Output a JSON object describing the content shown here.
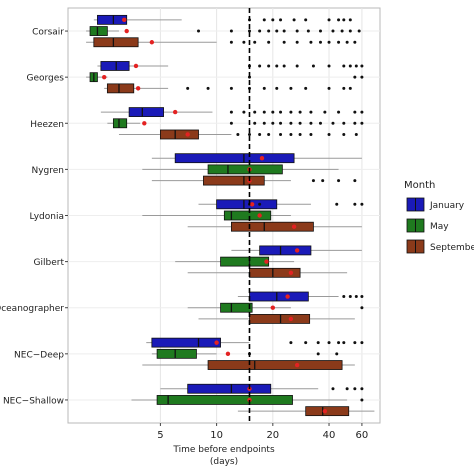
{
  "chart_data": {
    "type": "boxplot",
    "orientation": "horizontal",
    "xlabel": "Time before endpoints",
    "xlabel_unit": "(days)",
    "x_scale": "log",
    "xlim": [
      1.6,
      75
    ],
    "x_ticks": [
      5,
      10,
      20,
      40,
      60
    ],
    "x_tick_labels": [
      "5",
      "10",
      "20",
      "40",
      "60"
    ],
    "grid": true,
    "reference_line": {
      "x": 15,
      "style": "dashed"
    },
    "categories": [
      "Corsair",
      "Georges",
      "Heezen",
      "Nygren",
      "Lydonia",
      "Gilbert",
      "Oceanographer",
      "NEC-Deep",
      "NEC-Shallow"
    ],
    "category_labels": [
      "Corsair",
      "Georges",
      "Heezen",
      "Nygren",
      "Lydonia",
      "Gilbert",
      "Oceanographer",
      "NEC−Deep",
      "NEC−Shallow"
    ],
    "legend": {
      "title": "Month",
      "position": "right",
      "entries": [
        {
          "label": "January",
          "color": "#1a1ab8"
        },
        {
          "label": "May",
          "color": "#1f7a1f"
        },
        {
          "label": "September",
          "color": "#8b3a1a"
        }
      ]
    },
    "series": [
      {
        "name": "January",
        "color": "#1a1ab8",
        "boxes": [
          {
            "category": "Corsair",
            "whisker_low": 2.2,
            "q1": 2.3,
            "median": 2.8,
            "q3": 3.3,
            "whisker_high": 6.5,
            "mean": 3.2,
            "outliers": [
              15,
              18,
              20,
              22,
              26,
              30,
              40,
              45,
              48,
              52
            ]
          },
          {
            "category": "Georges",
            "whisker_low": 2.3,
            "q1": 2.4,
            "median": 2.9,
            "q3": 3.4,
            "whisker_high": 5.5,
            "mean": 3.7,
            "outliers": [
              15,
              17,
              19,
              21,
              23,
              27,
              33,
              40,
              48,
              52,
              56,
              60
            ]
          },
          {
            "category": "Heezen",
            "whisker_low": 2.4,
            "q1": 3.4,
            "median": 4.0,
            "q3": 5.2,
            "whisker_high": 9.5,
            "mean": 6.0,
            "outliers": [
              12,
              14,
              16,
              18,
              20,
              22,
              25,
              28,
              32,
              38,
              45,
              55,
              60
            ]
          },
          {
            "category": "Nygren",
            "whisker_low": 4.5,
            "q1": 6.0,
            "median": 14.0,
            "q3": 26.0,
            "whisker_high": 60.0,
            "mean": 17.5,
            "outliers": []
          },
          {
            "category": "Lydonia",
            "whisker_low": 8.0,
            "q1": 10.0,
            "median": 14.0,
            "q3": 21.0,
            "whisker_high": 32.0,
            "mean": 15.5,
            "outliers": [
              15,
              17,
              44,
              55,
              60
            ]
          },
          {
            "category": "Gilbert",
            "whisker_low": 12.0,
            "q1": 17.0,
            "median": 22.0,
            "q3": 32.0,
            "whisker_high": 60.0,
            "mean": 27.0,
            "outliers": []
          },
          {
            "category": "Oceanographer",
            "whisker_low": 13.0,
            "q1": 15.0,
            "median": 21.0,
            "q3": 31.0,
            "whisker_high": 45.0,
            "mean": 24.0,
            "outliers": [
              48,
              52,
              56,
              60
            ]
          },
          {
            "category": "NEC-Deep",
            "whisker_low": 4.2,
            "q1": 4.5,
            "median": 8.0,
            "q3": 10.5,
            "whisker_high": 15.0,
            "mean": 10.0,
            "outliers": [
              25,
              30,
              35,
              40,
              45,
              48,
              55,
              60
            ]
          },
          {
            "category": "NEC-Shallow",
            "whisker_low": 5.0,
            "q1": 7.0,
            "median": 12.0,
            "q3": 19.5,
            "whisker_high": 35.0,
            "mean": 15.0,
            "outliers": [
              42,
              50,
              55,
              60
            ]
          }
        ]
      },
      {
        "name": "May",
        "color": "#1f7a1f",
        "boxes": [
          {
            "category": "Corsair",
            "whisker_low": 2.0,
            "q1": 2.1,
            "median": 2.3,
            "q3": 2.6,
            "whisker_high": 3.0,
            "mean": 3.3,
            "outliers": [
              8,
              12,
              15,
              17,
              19,
              21,
              23,
              27,
              31,
              36,
              42,
              47,
              52,
              58
            ]
          },
          {
            "category": "Georges",
            "whisker_low": 2.0,
            "q1": 2.1,
            "median": 2.2,
            "q3": 2.3,
            "whisker_high": 2.6,
            "mean": 2.5,
            "outliers": [
              15,
              55,
              60
            ]
          },
          {
            "category": "Heezen",
            "whisker_low": 2.6,
            "q1": 2.8,
            "median": 3.0,
            "q3": 3.3,
            "whisker_high": 3.9,
            "mean": 4.1,
            "outliers": [
              12,
              16,
              18,
              20,
              22,
              25,
              28,
              32,
              36,
              42,
              48,
              55,
              60
            ]
          },
          {
            "category": "Nygren",
            "whisker_low": 4.0,
            "q1": 9.0,
            "median": 11.5,
            "q3": 22.5,
            "whisker_high": 45.0,
            "mean": 15.0,
            "outliers": []
          },
          {
            "category": "Lydonia",
            "whisker_low": 4.0,
            "q1": 11.0,
            "median": 12.0,
            "q3": 19.5,
            "whisker_high": 25.0,
            "mean": 17.0,
            "outliers": []
          },
          {
            "category": "Gilbert",
            "whisker_low": 6.0,
            "q1": 10.5,
            "median": 15.0,
            "q3": 19.0,
            "whisker_high": 26.0,
            "mean": 18.5,
            "outliers": []
          },
          {
            "category": "Oceanographer",
            "whisker_low": 7.0,
            "q1": 10.5,
            "median": 12.0,
            "q3": 15.5,
            "whisker_high": 25.0,
            "mean": 20.0,
            "outliers": [
              60
            ]
          },
          {
            "category": "NEC-Deep",
            "whisker_low": 4.5,
            "q1": 4.8,
            "median": 6.0,
            "q3": 7.8,
            "whisker_high": 10.0,
            "mean": 11.5,
            "outliers": [
              15,
              35,
              44
            ]
          },
          {
            "category": "NEC-Shallow",
            "whisker_low": 3.5,
            "q1": 4.8,
            "median": 5.5,
            "q3": 25.5,
            "whisker_high": 50.0,
            "mean": 15.0,
            "outliers": [
              60
            ]
          }
        ]
      },
      {
        "name": "September",
        "color": "#8b3a1a",
        "boxes": [
          {
            "category": "Corsair",
            "whisker_low": 2.0,
            "q1": 2.2,
            "median": 2.8,
            "q3": 3.8,
            "whisker_high": 10.0,
            "mean": 4.5,
            "outliers": [
              12,
              14,
              16,
              19,
              23,
              27,
              32,
              36,
              40,
              45,
              50,
              55
            ]
          },
          {
            "category": "Georges",
            "whisker_low": 2.5,
            "q1": 2.6,
            "median": 3.0,
            "q3": 3.6,
            "whisker_high": 5.5,
            "mean": 3.8,
            "outliers": [
              7,
              9,
              12,
              15,
              18,
              21,
              25,
              30,
              40,
              48,
              52
            ]
          },
          {
            "category": "Heezen",
            "whisker_low": 3.0,
            "q1": 5.0,
            "median": 6.0,
            "q3": 8.0,
            "whisker_high": 12.0,
            "mean": 7.0,
            "outliers": [
              13,
              15,
              17,
              19,
              22,
              25,
              28,
              32,
              40,
              48,
              56
            ]
          },
          {
            "category": "Nygren",
            "whisker_low": 4.5,
            "q1": 8.5,
            "median": 14.0,
            "q3": 18.0,
            "whisker_high": 25.0,
            "mean": 15.0,
            "outliers": [
              33,
              37,
              45,
              55
            ]
          },
          {
            "category": "Lydonia",
            "whisker_low": 7.0,
            "q1": 12.0,
            "median": 18.0,
            "q3": 33.0,
            "whisker_high": 60.0,
            "mean": 26.0,
            "outliers": []
          },
          {
            "category": "Gilbert",
            "whisker_low": 7.0,
            "q1": 15.0,
            "median": 20.0,
            "q3": 28.0,
            "whisker_high": 50.0,
            "mean": 25.0,
            "outliers": []
          },
          {
            "category": "Oceanographer",
            "whisker_low": 8.0,
            "q1": 15.0,
            "median": 22.0,
            "q3": 31.5,
            "whisker_high": 55.0,
            "mean": 25.0,
            "outliers": []
          },
          {
            "category": "NEC-Deep",
            "whisker_low": 4.0,
            "q1": 9.0,
            "median": 16.0,
            "q3": 47.0,
            "whisker_high": 55.0,
            "mean": 27.0,
            "outliers": []
          },
          {
            "category": "NEC-Shallow",
            "whisker_low": 13.0,
            "q1": 30.0,
            "median": 37.0,
            "q3": 51.0,
            "whisker_high": 70.0,
            "mean": 38.0,
            "outliers": []
          }
        ]
      }
    ]
  }
}
